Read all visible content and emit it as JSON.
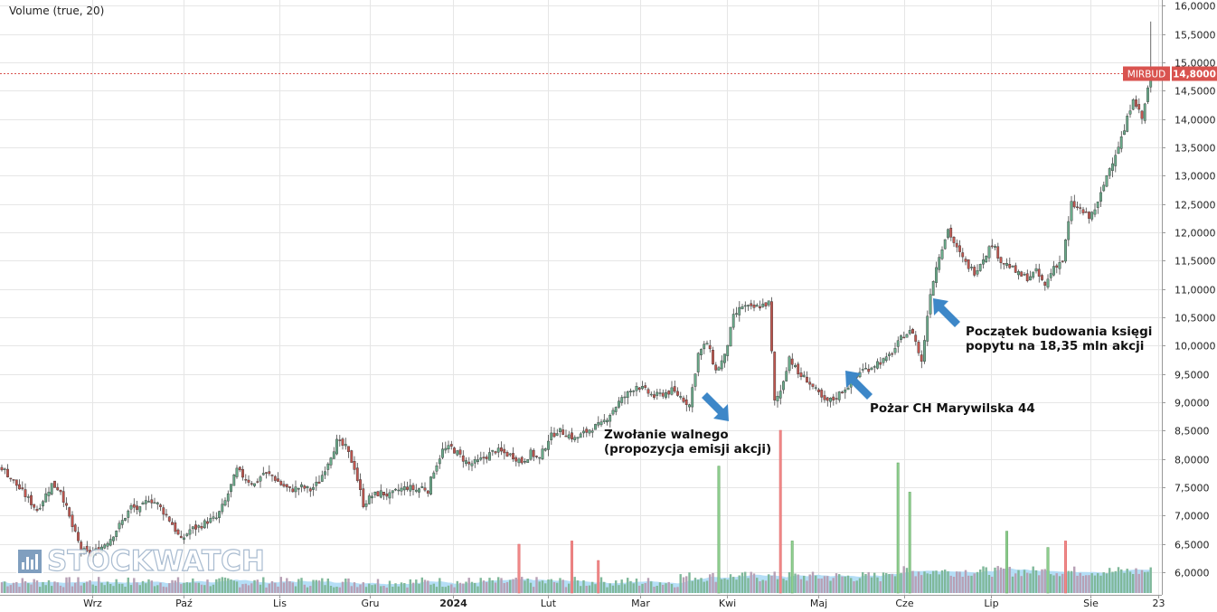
{
  "indicator": {
    "label": "Volume (true, 20)"
  },
  "ticker": {
    "name": "MIRBUD",
    "value": "14,8000",
    "level": 14.8,
    "color": "#d9534f"
  },
  "logo": {
    "text": "STOCKWATCH"
  },
  "annotations": [
    {
      "lines": [
        "Zwołanie walnego",
        "(propozycja emisji akcji)"
      ],
      "arrow": "down-right"
    },
    {
      "lines": [
        "Pożar CH Marywilska 44"
      ],
      "arrow": "up-left"
    },
    {
      "lines": [
        "Początek budowania księgi",
        "popytu na 18,35 mln akcji"
      ],
      "arrow": "up-left"
    }
  ],
  "chart_data": {
    "type": "candlestick",
    "y_axis": {
      "min": 5.6,
      "max": 16.1,
      "position": "right",
      "ticks": [
        {
          "v": 16.0,
          "label": "16,0000"
        },
        {
          "v": 15.5,
          "label": "15,5000"
        },
        {
          "v": 15.0,
          "label": "15,0000"
        },
        {
          "v": 14.5,
          "label": "14,5000"
        },
        {
          "v": 14.0,
          "label": "14,0000"
        },
        {
          "v": 13.5,
          "label": "13,5000"
        },
        {
          "v": 13.0,
          "label": "13,0000"
        },
        {
          "v": 12.5,
          "label": "12,5000"
        },
        {
          "v": 12.0,
          "label": "12,0000"
        },
        {
          "v": 11.5,
          "label": "11,5000"
        },
        {
          "v": 11.0,
          "label": "11,0000"
        },
        {
          "v": 10.5,
          "label": "10,5000"
        },
        {
          "v": 10.0,
          "label": "10,0000"
        },
        {
          "v": 9.5,
          "label": "9,5000"
        },
        {
          "v": 9.0,
          "label": "9,0000"
        },
        {
          "v": 8.5,
          "label": "8,5000"
        },
        {
          "v": 8.0,
          "label": "8,0000"
        },
        {
          "v": 7.5,
          "label": "7,5000"
        },
        {
          "v": 7.0,
          "label": "7,0000"
        },
        {
          "v": 6.5,
          "label": "6,5000"
        },
        {
          "v": 6.0,
          "label": "6,0000"
        }
      ]
    },
    "x_axis": {
      "labels": [
        {
          "label": "Wrz",
          "bold": false
        },
        {
          "label": "Paź",
          "bold": false
        },
        {
          "label": "Lis",
          "bold": false
        },
        {
          "label": "Gru",
          "bold": false
        },
        {
          "label": "2024",
          "bold": true
        },
        {
          "label": "Lut",
          "bold": false
        },
        {
          "label": "Mar",
          "bold": false
        },
        {
          "label": "Kwi",
          "bold": false
        },
        {
          "label": "Maj",
          "bold": false
        },
        {
          "label": "Cze",
          "bold": false
        },
        {
          "label": "Lip",
          "bold": false
        },
        {
          "label": "Sie",
          "bold": false
        },
        {
          "label": "23",
          "bold": false
        }
      ]
    },
    "grid": true,
    "colors": {
      "up": "#6aaa8a",
      "down": "#c0564f",
      "wick": "#444444",
      "vol_up": "#8fcf8f",
      "vol_down": "#f08888",
      "vol_ma": "#a8d8f4"
    },
    "price_points": [
      [
        0,
        7.85
      ],
      [
        4,
        7.6
      ],
      [
        8,
        7.35
      ],
      [
        12,
        7.1
      ],
      [
        17,
        7.55
      ],
      [
        20,
        7.45
      ],
      [
        24,
        6.8
      ],
      [
        27,
        6.4
      ],
      [
        30,
        6.3
      ],
      [
        34,
        6.45
      ],
      [
        37,
        6.6
      ],
      [
        41,
        6.9
      ],
      [
        44,
        7.15
      ],
      [
        47,
        7.1
      ],
      [
        50,
        7.3
      ],
      [
        53,
        7.2
      ],
      [
        56,
        7.0
      ],
      [
        58,
        6.85
      ],
      [
        61,
        6.55
      ],
      [
        64,
        6.75
      ],
      [
        67,
        6.8
      ],
      [
        70,
        6.9
      ],
      [
        73,
        6.95
      ],
      [
        76,
        7.25
      ],
      [
        80,
        7.8
      ],
      [
        83,
        7.65
      ],
      [
        86,
        7.55
      ],
      [
        89,
        7.75
      ],
      [
        92,
        7.7
      ],
      [
        95,
        7.55
      ],
      [
        98,
        7.45
      ],
      [
        102,
        7.5
      ],
      [
        105,
        7.45
      ],
      [
        108,
        7.6
      ],
      [
        111,
        7.95
      ],
      [
        114,
        8.3
      ],
      [
        117,
        8.2
      ],
      [
        120,
        7.85
      ],
      [
        123,
        7.2
      ],
      [
        126,
        7.35
      ],
      [
        129,
        7.4
      ],
      [
        132,
        7.35
      ],
      [
        135,
        7.45
      ],
      [
        138,
        7.5
      ],
      [
        141,
        7.45
      ],
      [
        143,
        7.5
      ],
      [
        145,
        7.45
      ],
      [
        147,
        7.8
      ],
      [
        150,
        8.15
      ],
      [
        153,
        8.2
      ],
      [
        156,
        8.05
      ],
      [
        159,
        7.9
      ],
      [
        162,
        7.95
      ],
      [
        165,
        8.05
      ],
      [
        168,
        8.15
      ],
      [
        171,
        8.1
      ],
      [
        174,
        8.05
      ],
      [
        177,
        7.95
      ],
      [
        180,
        8.1
      ],
      [
        183,
        8.0
      ],
      [
        186,
        8.35
      ],
      [
        189,
        8.5
      ],
      [
        192,
        8.45
      ],
      [
        195,
        8.35
      ],
      [
        198,
        8.45
      ],
      [
        201,
        8.55
      ],
      [
        204,
        8.6
      ],
      [
        207,
        8.8
      ],
      [
        210,
        9.0
      ],
      [
        213,
        9.15
      ],
      [
        216,
        9.3
      ],
      [
        219,
        9.2
      ],
      [
        222,
        9.1
      ],
      [
        225,
        9.15
      ],
      [
        228,
        9.2
      ],
      [
        231,
        9.1
      ],
      [
        234,
        8.95
      ],
      [
        237,
        9.85
      ],
      [
        240,
        10.05
      ],
      [
        243,
        9.55
      ],
      [
        246,
        9.8
      ],
      [
        249,
        10.5
      ],
      [
        252,
        10.7
      ],
      [
        255,
        10.65
      ],
      [
        258,
        10.7
      ],
      [
        261,
        10.75
      ],
      [
        263,
        9.0
      ],
      [
        265,
        9.2
      ],
      [
        268,
        9.8
      ],
      [
        271,
        9.5
      ],
      [
        274,
        9.4
      ],
      [
        277,
        9.2
      ],
      [
        280,
        9.0
      ],
      [
        283,
        9.05
      ],
      [
        286,
        9.2
      ],
      [
        289,
        9.35
      ],
      [
        292,
        9.55
      ],
      [
        295,
        9.6
      ],
      [
        298,
        9.7
      ],
      [
        301,
        9.75
      ],
      [
        304,
        9.95
      ],
      [
        307,
        10.2
      ],
      [
        310,
        10.25
      ],
      [
        313,
        9.7
      ],
      [
        316,
        10.95
      ],
      [
        319,
        11.6
      ],
      [
        322,
        12.05
      ],
      [
        325,
        11.7
      ],
      [
        328,
        11.45
      ],
      [
        331,
        11.3
      ],
      [
        334,
        11.55
      ],
      [
        337,
        11.8
      ],
      [
        340,
        11.5
      ],
      [
        343,
        11.4
      ],
      [
        346,
        11.25
      ],
      [
        349,
        11.2
      ],
      [
        352,
        11.3
      ],
      [
        355,
        11.05
      ],
      [
        358,
        11.4
      ],
      [
        361,
        11.5
      ],
      [
        364,
        12.5
      ],
      [
        367,
        12.4
      ],
      [
        370,
        12.25
      ],
      [
        373,
        12.5
      ],
      [
        376,
        13.0
      ],
      [
        379,
        13.4
      ],
      [
        382,
        13.8
      ],
      [
        385,
        14.4
      ],
      [
        388,
        14.0
      ],
      [
        391,
        14.8
      ]
    ],
    "last_x": 391,
    "volume_spikes": [
      {
        "x": 244,
        "h": 0.78,
        "type": "up"
      },
      {
        "x": 265,
        "h": 1.0,
        "type": "down"
      },
      {
        "x": 269,
        "h": 0.32,
        "type": "up"
      },
      {
        "x": 305,
        "h": 0.8,
        "type": "up"
      },
      {
        "x": 309,
        "h": 0.62,
        "type": "up"
      },
      {
        "x": 342,
        "h": 0.38,
        "type": "up"
      },
      {
        "x": 356,
        "h": 0.28,
        "type": "up"
      },
      {
        "x": 194,
        "h": 0.32,
        "type": "down"
      },
      {
        "x": 176,
        "h": 0.3,
        "type": "down"
      },
      {
        "x": 203,
        "h": 0.2,
        "type": "down"
      },
      {
        "x": 362,
        "h": 0.32,
        "type": "down"
      }
    ]
  }
}
